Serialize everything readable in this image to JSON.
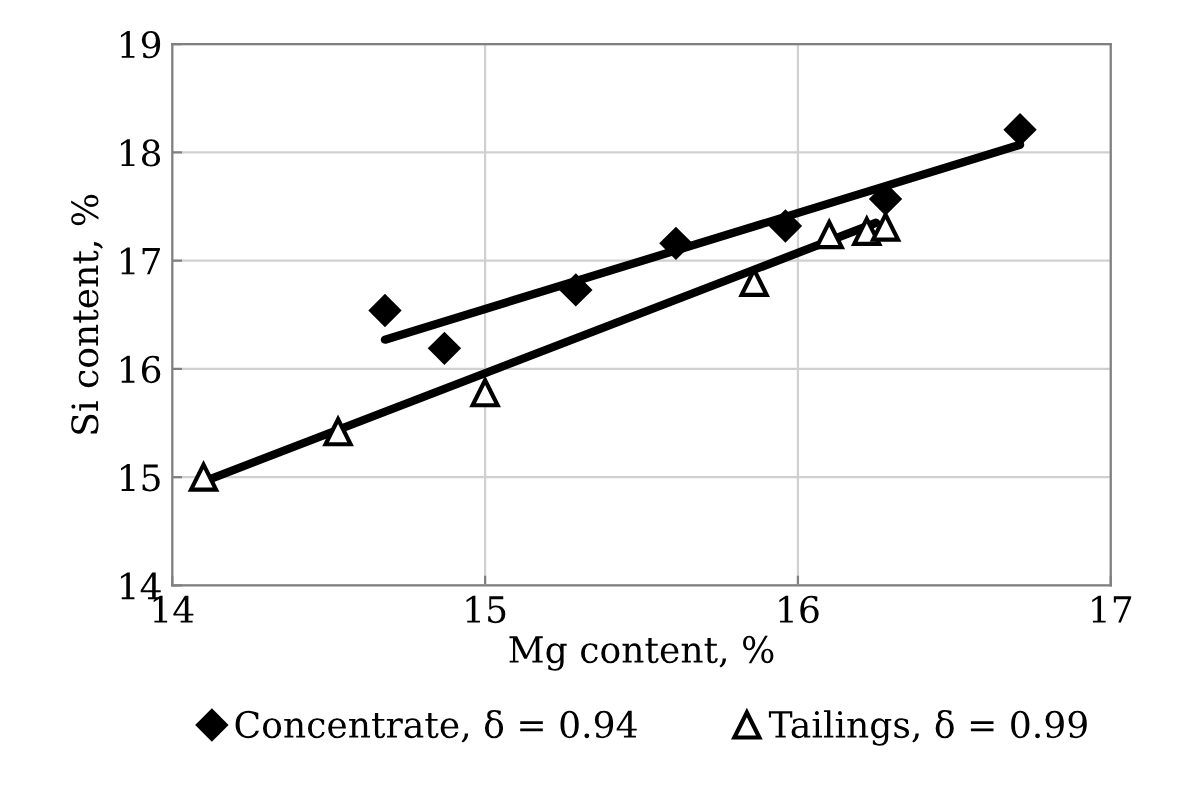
{
  "chart_data": {
    "type": "scatter",
    "xlabel": "Mg content, %",
    "ylabel": "Si content, %",
    "xlim": [
      14,
      17
    ],
    "ylim": [
      14,
      19
    ],
    "xticks": [
      14,
      15,
      16,
      17
    ],
    "yticks": [
      14,
      15,
      16,
      17,
      18,
      19
    ],
    "grid": true,
    "legend": "bottom",
    "series": [
      {
        "name": "Concentrate, δ = 0.94",
        "color": "#000000",
        "marker": "diamond",
        "x": [
          14.68,
          14.87,
          15.29,
          15.61,
          15.96,
          16.28,
          16.71
        ],
        "values": [
          16.54,
          16.19,
          16.73,
          17.16,
          17.32,
          17.57,
          18.21
        ]
      },
      {
        "name": "Tailings, δ = 0.99",
        "color": "#000000",
        "marker": "triangle",
        "x": [
          14.1,
          14.53,
          15.0,
          15.86,
          16.1,
          16.22,
          16.28
        ],
        "values": [
          15.0,
          15.42,
          15.78,
          16.8,
          17.24,
          17.27,
          17.31
        ]
      },
      {
        "type": "line",
        "color": "#000000",
        "marker": "none",
        "x": [
          14.68,
          16.71
        ],
        "values": [
          16.27,
          18.07
        ]
      },
      {
        "type": "line",
        "color": "#000000",
        "marker": "none",
        "x": [
          14.1,
          16.25
        ],
        "values": [
          14.96,
          17.35
        ]
      }
    ]
  }
}
